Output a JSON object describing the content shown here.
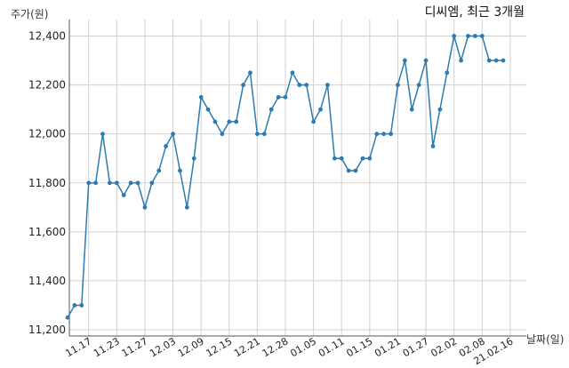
{
  "chart_data": {
    "type": "line",
    "title": "디씨엠, 최근 3개월",
    "ylabel": "주가(원)",
    "xlabel": "날짜(일)",
    "ylim": [
      11200,
      12450
    ],
    "yticks": [
      11200,
      11400,
      11600,
      11800,
      12000,
      12200,
      12400
    ],
    "ytick_labels": [
      "11,200",
      "11,400",
      "11,600",
      "11,800",
      "12,000",
      "12,200",
      "12,400"
    ],
    "xtick_labels": [
      "11.17",
      "11.23",
      "11.27",
      "12.03",
      "12.09",
      "12.15",
      "12.21",
      "12.28",
      "01.05",
      "01.11",
      "01.15",
      "01.21",
      "01.27",
      "02.02",
      "02.08",
      "21.02.16"
    ],
    "xtick_indices": [
      3,
      7,
      11,
      15,
      19,
      23,
      27,
      31,
      35,
      39,
      43,
      47,
      51,
      55,
      59,
      63
    ],
    "grid": true,
    "color": "#2e7bb0",
    "values": [
      11250,
      11300,
      11300,
      11800,
      11800,
      12000,
      11800,
      11800,
      11750,
      11800,
      11800,
      11700,
      11800,
      11850,
      11950,
      12000,
      11850,
      11700,
      11900,
      12150,
      12100,
      12050,
      12000,
      12050,
      12050,
      12200,
      12250,
      12000,
      12000,
      12100,
      12150,
      12150,
      12250,
      12200,
      12200,
      12050,
      12100,
      12200,
      11900,
      11900,
      11850,
      11850,
      11900,
      11900,
      12000,
      12000,
      12000,
      12200,
      12300,
      12100,
      12200,
      12300,
      11950,
      12100,
      12250,
      12400,
      12300,
      12400,
      12400,
      12400,
      12300,
      12300,
      12300
    ]
  }
}
